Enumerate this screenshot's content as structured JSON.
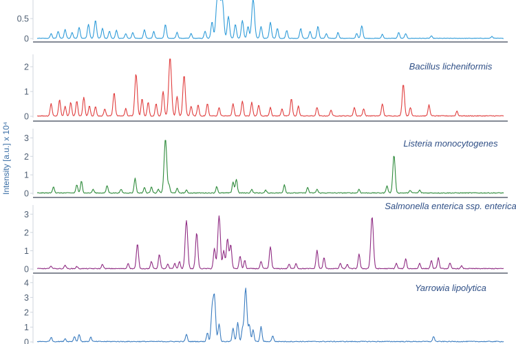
{
  "chart_data": {
    "y_axis_title": "Intensity [a.u.] x 10⁴",
    "panels": [
      {
        "title": "",
        "type": "line",
        "color": "#2e9bd9",
        "yticks": [
          0,
          0.5
        ],
        "ylim": [
          0,
          1.0
        ],
        "peaks": [
          {
            "x": 0.03,
            "h": 0.12
          },
          {
            "x": 0.045,
            "h": 0.18
          },
          {
            "x": 0.06,
            "h": 0.22
          },
          {
            "x": 0.075,
            "h": 0.15
          },
          {
            "x": 0.09,
            "h": 0.28
          },
          {
            "x": 0.11,
            "h": 0.35
          },
          {
            "x": 0.125,
            "h": 0.45
          },
          {
            "x": 0.14,
            "h": 0.25
          },
          {
            "x": 0.155,
            "h": 0.18
          },
          {
            "x": 0.17,
            "h": 0.2
          },
          {
            "x": 0.19,
            "h": 0.12
          },
          {
            "x": 0.205,
            "h": 0.15
          },
          {
            "x": 0.23,
            "h": 0.22
          },
          {
            "x": 0.25,
            "h": 0.17
          },
          {
            "x": 0.275,
            "h": 0.35
          },
          {
            "x": 0.3,
            "h": 0.15
          },
          {
            "x": 0.33,
            "h": 0.12
          },
          {
            "x": 0.36,
            "h": 0.18
          },
          {
            "x": 0.375,
            "h": 0.42
          },
          {
            "x": 0.385,
            "h": 0.7
          },
          {
            "x": 0.39,
            "h": 0.95
          },
          {
            "x": 0.397,
            "h": 0.95
          },
          {
            "x": 0.41,
            "h": 0.55
          },
          {
            "x": 0.425,
            "h": 0.35
          },
          {
            "x": 0.44,
            "h": 0.45
          },
          {
            "x": 0.452,
            "h": 0.3
          },
          {
            "x": 0.463,
            "h": 0.98
          },
          {
            "x": 0.48,
            "h": 0.3
          },
          {
            "x": 0.5,
            "h": 0.4
          },
          {
            "x": 0.515,
            "h": 0.25
          },
          {
            "x": 0.535,
            "h": 0.2
          },
          {
            "x": 0.565,
            "h": 0.25
          },
          {
            "x": 0.585,
            "h": 0.18
          },
          {
            "x": 0.602,
            "h": 0.3
          },
          {
            "x": 0.62,
            "h": 0.12
          },
          {
            "x": 0.645,
            "h": 0.15
          },
          {
            "x": 0.685,
            "h": 0.12
          },
          {
            "x": 0.696,
            "h": 0.32
          },
          {
            "x": 0.74,
            "h": 0.1
          },
          {
            "x": 0.775,
            "h": 0.15
          },
          {
            "x": 0.79,
            "h": 0.12
          },
          {
            "x": 0.845,
            "h": 0.06
          },
          {
            "x": 0.975,
            "h": 0.05
          }
        ]
      },
      {
        "title": "Bacillus licheniformis",
        "type": "line",
        "color": "#e03c3c",
        "yticks": [
          0,
          1,
          2
        ],
        "ylim": [
          0,
          2.5
        ],
        "peaks": [
          {
            "x": 0.03,
            "h": 0.5
          },
          {
            "x": 0.048,
            "h": 0.65
          },
          {
            "x": 0.06,
            "h": 0.4
          },
          {
            "x": 0.072,
            "h": 0.55
          },
          {
            "x": 0.085,
            "h": 0.6
          },
          {
            "x": 0.1,
            "h": 0.75
          },
          {
            "x": 0.112,
            "h": 0.42
          },
          {
            "x": 0.125,
            "h": 0.38
          },
          {
            "x": 0.145,
            "h": 0.3
          },
          {
            "x": 0.165,
            "h": 0.95
          },
          {
            "x": 0.19,
            "h": 0.3
          },
          {
            "x": 0.212,
            "h": 1.7
          },
          {
            "x": 0.225,
            "h": 0.7
          },
          {
            "x": 0.238,
            "h": 0.55
          },
          {
            "x": 0.255,
            "h": 0.5
          },
          {
            "x": 0.27,
            "h": 1.0
          },
          {
            "x": 0.285,
            "h": 2.35
          },
          {
            "x": 0.3,
            "h": 0.8
          },
          {
            "x": 0.315,
            "h": 1.65
          },
          {
            "x": 0.33,
            "h": 0.4
          },
          {
            "x": 0.345,
            "h": 0.45
          },
          {
            "x": 0.365,
            "h": 0.5
          },
          {
            "x": 0.39,
            "h": 0.35
          },
          {
            "x": 0.42,
            "h": 0.5
          },
          {
            "x": 0.44,
            "h": 0.6
          },
          {
            "x": 0.46,
            "h": 0.55
          },
          {
            "x": 0.475,
            "h": 0.45
          },
          {
            "x": 0.5,
            "h": 0.35
          },
          {
            "x": 0.525,
            "h": 0.3
          },
          {
            "x": 0.545,
            "h": 0.7
          },
          {
            "x": 0.56,
            "h": 0.4
          },
          {
            "x": 0.6,
            "h": 0.35
          },
          {
            "x": 0.63,
            "h": 0.25
          },
          {
            "x": 0.68,
            "h": 0.35
          },
          {
            "x": 0.7,
            "h": 0.3
          },
          {
            "x": 0.74,
            "h": 0.5
          },
          {
            "x": 0.785,
            "h": 1.3
          },
          {
            "x": 0.8,
            "h": 0.35
          },
          {
            "x": 0.84,
            "h": 0.45
          },
          {
            "x": 0.9,
            "h": 0.2
          }
        ]
      },
      {
        "title": "Listeria monocytogenes",
        "type": "line",
        "color": "#2d8a3a",
        "yticks": [
          0,
          1,
          2,
          3
        ],
        "ylim": [
          0,
          3.5
        ],
        "peaks": [
          {
            "x": 0.035,
            "h": 0.35
          },
          {
            "x": 0.085,
            "h": 0.45
          },
          {
            "x": 0.095,
            "h": 0.65
          },
          {
            "x": 0.12,
            "h": 0.2
          },
          {
            "x": 0.15,
            "h": 0.4
          },
          {
            "x": 0.18,
            "h": 0.2
          },
          {
            "x": 0.21,
            "h": 0.8
          },
          {
            "x": 0.23,
            "h": 0.3
          },
          {
            "x": 0.245,
            "h": 0.35
          },
          {
            "x": 0.26,
            "h": 0.2
          },
          {
            "x": 0.275,
            "h": 2.95
          },
          {
            "x": 0.283,
            "h": 0.4
          },
          {
            "x": 0.3,
            "h": 0.25
          },
          {
            "x": 0.32,
            "h": 0.15
          },
          {
            "x": 0.385,
            "h": 0.35
          },
          {
            "x": 0.42,
            "h": 0.6
          },
          {
            "x": 0.427,
            "h": 0.75
          },
          {
            "x": 0.46,
            "h": 0.2
          },
          {
            "x": 0.49,
            "h": 0.15
          },
          {
            "x": 0.53,
            "h": 0.45
          },
          {
            "x": 0.58,
            "h": 0.3
          },
          {
            "x": 0.6,
            "h": 0.2
          },
          {
            "x": 0.69,
            "h": 0.2
          },
          {
            "x": 0.75,
            "h": 0.4
          },
          {
            "x": 0.765,
            "h": 2.05
          },
          {
            "x": 0.8,
            "h": 0.15
          },
          {
            "x": 0.82,
            "h": 0.15
          }
        ]
      },
      {
        "title": "Salmonella enterica ssp. enterica",
        "type": "line",
        "color": "#8e2a82",
        "yticks": [
          0,
          1,
          2,
          3
        ],
        "ylim": [
          0,
          3.5
        ],
        "peaks": [
          {
            "x": 0.03,
            "h": 0.15
          },
          {
            "x": 0.06,
            "h": 0.2
          },
          {
            "x": 0.085,
            "h": 0.12
          },
          {
            "x": 0.14,
            "h": 0.25
          },
          {
            "x": 0.195,
            "h": 0.3
          },
          {
            "x": 0.215,
            "h": 1.35
          },
          {
            "x": 0.245,
            "h": 0.4
          },
          {
            "x": 0.262,
            "h": 0.8
          },
          {
            "x": 0.28,
            "h": 0.25
          },
          {
            "x": 0.295,
            "h": 0.3
          },
          {
            "x": 0.305,
            "h": 0.4
          },
          {
            "x": 0.32,
            "h": 2.65
          },
          {
            "x": 0.342,
            "h": 1.95
          },
          {
            "x": 0.38,
            "h": 1.1
          },
          {
            "x": 0.39,
            "h": 2.9
          },
          {
            "x": 0.4,
            "h": 1.0
          },
          {
            "x": 0.408,
            "h": 1.65
          },
          {
            "x": 0.415,
            "h": 1.3
          },
          {
            "x": 0.435,
            "h": 0.7
          },
          {
            "x": 0.445,
            "h": 0.45
          },
          {
            "x": 0.48,
            "h": 0.4
          },
          {
            "x": 0.5,
            "h": 1.2
          },
          {
            "x": 0.54,
            "h": 0.25
          },
          {
            "x": 0.555,
            "h": 0.3
          },
          {
            "x": 0.6,
            "h": 1.0
          },
          {
            "x": 0.615,
            "h": 0.6
          },
          {
            "x": 0.65,
            "h": 0.3
          },
          {
            "x": 0.665,
            "h": 0.25
          },
          {
            "x": 0.69,
            "h": 0.8
          },
          {
            "x": 0.718,
            "h": 2.85
          },
          {
            "x": 0.77,
            "h": 0.3
          },
          {
            "x": 0.79,
            "h": 0.55
          },
          {
            "x": 0.82,
            "h": 0.3
          },
          {
            "x": 0.845,
            "h": 0.45
          },
          {
            "x": 0.86,
            "h": 0.6
          },
          {
            "x": 0.885,
            "h": 0.3
          },
          {
            "x": 0.91,
            "h": 0.15
          }
        ]
      },
      {
        "title": "Yarrowia lipolytica",
        "type": "line",
        "color": "#3a7cc0",
        "yticks": [
          0,
          1,
          2,
          3,
          4
        ],
        "ylim": [
          0,
          4.5
        ],
        "peaks": [
          {
            "x": 0.03,
            "h": 0.3
          },
          {
            "x": 0.06,
            "h": 0.2
          },
          {
            "x": 0.08,
            "h": 0.35
          },
          {
            "x": 0.09,
            "h": 0.5
          },
          {
            "x": 0.115,
            "h": 0.3
          },
          {
            "x": 0.32,
            "h": 0.5
          },
          {
            "x": 0.365,
            "h": 0.6
          },
          {
            "x": 0.375,
            "h": 2.0
          },
          {
            "x": 0.38,
            "h": 3.0
          },
          {
            "x": 0.39,
            "h": 1.2
          },
          {
            "x": 0.42,
            "h": 0.9
          },
          {
            "x": 0.43,
            "h": 1.3
          },
          {
            "x": 0.44,
            "h": 0.8
          },
          {
            "x": 0.447,
            "h": 3.6
          },
          {
            "x": 0.455,
            "h": 1.1
          },
          {
            "x": 0.463,
            "h": 0.8
          },
          {
            "x": 0.48,
            "h": 1.0
          },
          {
            "x": 0.505,
            "h": 0.4
          },
          {
            "x": 0.85,
            "h": 0.35
          }
        ]
      }
    ]
  }
}
